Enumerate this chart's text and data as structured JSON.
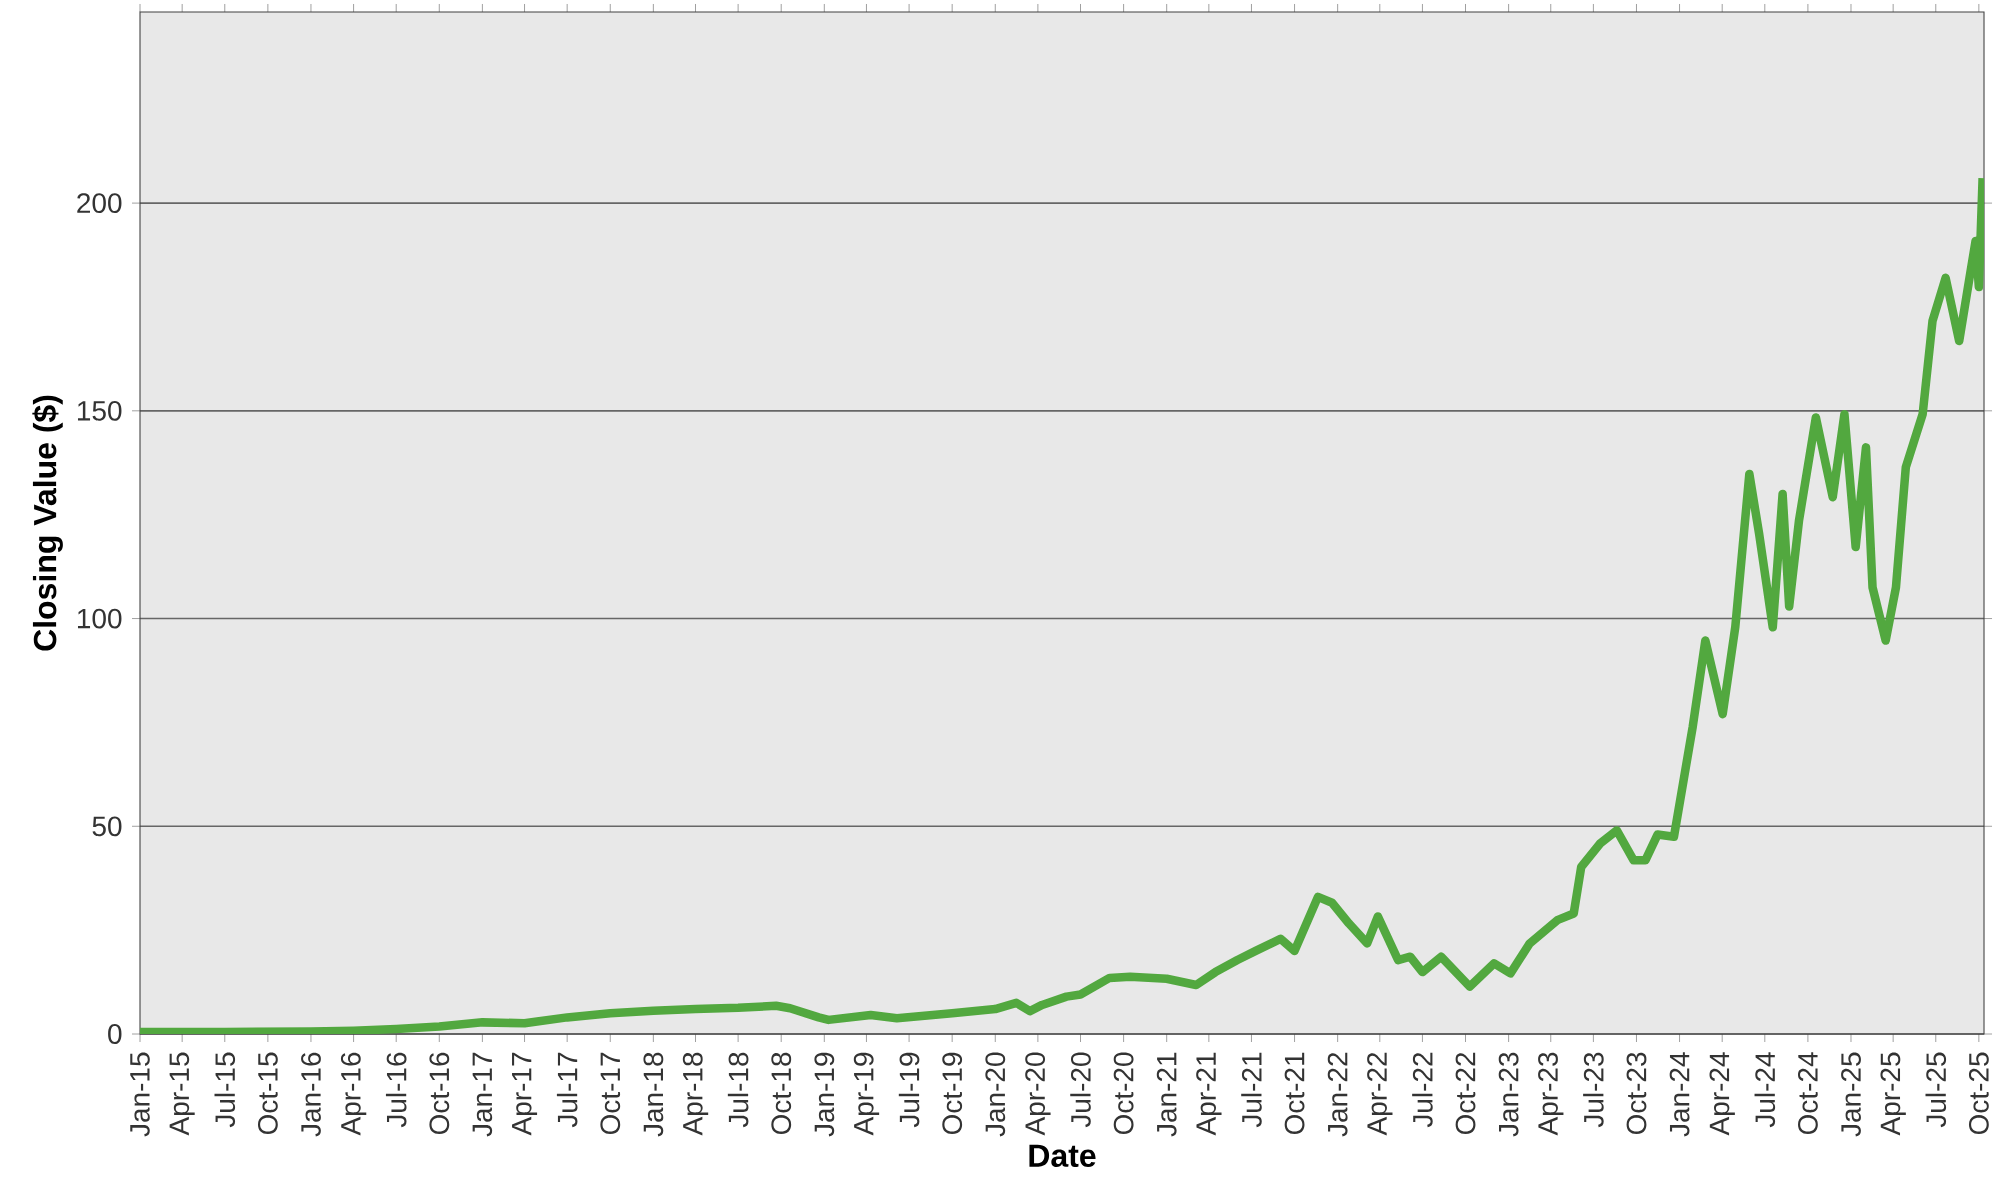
{
  "chart_data": {
    "type": "line",
    "xlabel": "Date",
    "ylabel": "Closing Value ($)",
    "xlim": [
      "2015-01-01",
      "2025-10-12"
    ],
    "ylim": [
      0,
      246
    ],
    "yticks": [
      0,
      50,
      100,
      150,
      200
    ],
    "grid": "y",
    "xticks": [
      {
        "value": "2015-01-01",
        "label": "Jan-15"
      },
      {
        "value": "2015-04-01",
        "label": "Apr-15"
      },
      {
        "value": "2015-07-01",
        "label": "Jul-15"
      },
      {
        "value": "2015-10-01",
        "label": "Oct-15"
      },
      {
        "value": "2016-01-01",
        "label": "Jan-16"
      },
      {
        "value": "2016-04-01",
        "label": "Apr-16"
      },
      {
        "value": "2016-07-01",
        "label": "Jul-16"
      },
      {
        "value": "2016-10-01",
        "label": "Oct-16"
      },
      {
        "value": "2017-01-01",
        "label": "Jan-17"
      },
      {
        "value": "2017-04-01",
        "label": "Apr-17"
      },
      {
        "value": "2017-07-01",
        "label": "Jul-17"
      },
      {
        "value": "2017-10-01",
        "label": "Oct-17"
      },
      {
        "value": "2018-01-01",
        "label": "Jan-18"
      },
      {
        "value": "2018-04-01",
        "label": "Apr-18"
      },
      {
        "value": "2018-07-01",
        "label": "Jul-18"
      },
      {
        "value": "2018-10-01",
        "label": "Oct-18"
      },
      {
        "value": "2019-01-01",
        "label": "Jan-19"
      },
      {
        "value": "2019-04-01",
        "label": "Apr-19"
      },
      {
        "value": "2019-07-01",
        "label": "Jul-19"
      },
      {
        "value": "2019-10-01",
        "label": "Oct-19"
      },
      {
        "value": "2020-01-01",
        "label": "Jan-20"
      },
      {
        "value": "2020-04-01",
        "label": "Apr-20"
      },
      {
        "value": "2020-07-01",
        "label": "Jul-20"
      },
      {
        "value": "2020-10-01",
        "label": "Oct-20"
      },
      {
        "value": "2021-01-01",
        "label": "Jan-21"
      },
      {
        "value": "2021-04-01",
        "label": "Apr-21"
      },
      {
        "value": "2021-07-01",
        "label": "Jul-21"
      },
      {
        "value": "2021-10-01",
        "label": "Oct-21"
      },
      {
        "value": "2022-01-01",
        "label": "Jan-22"
      },
      {
        "value": "2022-04-01",
        "label": "Apr-22"
      },
      {
        "value": "2022-07-01",
        "label": "Jul-22"
      },
      {
        "value": "2022-10-01",
        "label": "Oct-22"
      },
      {
        "value": "2023-01-01",
        "label": "Jan-23"
      },
      {
        "value": "2023-04-01",
        "label": "Apr-23"
      },
      {
        "value": "2023-07-01",
        "label": "Jul-23"
      },
      {
        "value": "2023-10-01",
        "label": "Oct-23"
      },
      {
        "value": "2024-01-01",
        "label": "Jan-24"
      },
      {
        "value": "2024-04-01",
        "label": "Apr-24"
      },
      {
        "value": "2024-07-01",
        "label": "Jul-24"
      },
      {
        "value": "2024-10-01",
        "label": "Oct-24"
      },
      {
        "value": "2025-01-01",
        "label": "Jan-25"
      },
      {
        "value": "2025-04-01",
        "label": "Apr-25"
      },
      {
        "value": "2025-07-01",
        "label": "Jul-25"
      },
      {
        "value": "2025-10-01",
        "label": "Oct-25"
      }
    ],
    "series": [
      {
        "color": "#52a83f",
        "x": [
          "2015-01-01",
          "2015-07-01",
          "2016-01-01",
          "2016-04-01",
          "2016-07-01",
          "2016-10-01",
          "2017-01-01",
          "2017-04-01",
          "2017-07-01",
          "2017-10-01",
          "2018-01-01",
          "2018-04-01",
          "2018-07-01",
          "2018-09-20",
          "2018-10-20",
          "2018-12-20",
          "2019-01-10",
          "2019-04-10",
          "2019-06-05",
          "2019-10-01",
          "2020-01-01",
          "2020-02-15",
          "2020-03-15",
          "2020-04-10",
          "2020-06-01",
          "2020-07-01",
          "2020-09-01",
          "2020-10-15",
          "2021-01-01",
          "2021-03-05",
          "2021-04-15",
          "2021-06-01",
          "2021-07-10",
          "2021-09-01",
          "2021-10-01",
          "2021-11-20",
          "2021-12-20",
          "2022-01-25",
          "2022-03-05",
          "2022-03-28",
          "2022-05-10",
          "2022-06-05",
          "2022-07-01",
          "2022-08-10",
          "2022-10-10",
          "2022-12-01",
          "2023-01-05",
          "2023-02-15",
          "2023-04-15",
          "2023-05-20",
          "2023-06-05",
          "2023-07-15",
          "2023-08-20",
          "2023-09-25",
          "2023-10-20",
          "2023-11-15",
          "2023-12-20",
          "2024-01-29",
          "2024-02-25",
          "2024-04-02",
          "2024-04-29",
          "2024-05-29",
          "2024-06-19",
          "2024-07-18",
          "2024-08-08",
          "2024-08-22",
          "2024-09-12",
          "2024-10-18",
          "2024-11-23",
          "2024-12-18",
          "2025-01-11",
          "2025-02-02",
          "2025-02-16",
          "2025-03-16",
          "2025-04-07",
          "2025-04-28",
          "2025-06-03",
          "2025-06-24",
          "2025-07-22",
          "2025-08-20",
          "2025-09-10",
          "2025-09-24",
          "2025-10-01",
          "2025-10-09"
        ],
        "values": [
          0.5,
          0.5,
          0.6,
          0.8,
          1.2,
          1.8,
          2.8,
          2.6,
          4.0,
          5.0,
          5.6,
          6.0,
          6.3,
          6.8,
          6.2,
          4.0,
          3.4,
          4.6,
          3.8,
          5.0,
          6.0,
          7.5,
          5.5,
          7.0,
          9.0,
          9.5,
          13.5,
          13.8,
          13.3,
          11.8,
          14.9,
          17.8,
          20.0,
          22.9,
          20.0,
          33.0,
          31.6,
          26.6,
          21.8,
          28.3,
          17.8,
          18.6,
          14.9,
          18.6,
          11.4,
          17.0,
          14.6,
          21.8,
          27.4,
          29.0,
          40.2,
          45.8,
          49.0,
          41.8,
          41.8,
          48.0,
          47.5,
          73.9,
          94.7,
          77.0,
          98.0,
          134.8,
          120.3,
          97.9,
          130.0,
          102.9,
          123.6,
          148.4,
          129.2,
          149.2,
          117.2,
          141.2,
          107.5,
          94.7,
          107.5,
          136.4,
          149.2,
          171.6,
          182.0,
          166.8,
          181.3,
          190.9,
          179.8,
          206.0
        ]
      }
    ]
  }
}
